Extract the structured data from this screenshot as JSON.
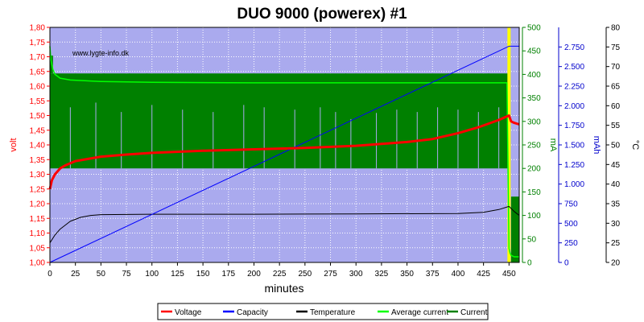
{
  "chart_data": {
    "type": "line",
    "title": "DUO 9000 (powerex) #1",
    "watermark": "www.lygte-info.dk",
    "xlabel": "minutes",
    "xlim": [
      0,
      460
    ],
    "x_ticks": [
      "0",
      "25",
      "50",
      "75",
      "100",
      "125",
      "150",
      "175",
      "200",
      "225",
      "250",
      "275",
      "300",
      "325",
      "350",
      "375",
      "400",
      "425",
      "450"
    ],
    "axes": {
      "volt": {
        "label": "volt",
        "color": "#ff0000",
        "range": [
          1.0,
          1.8
        ],
        "ticks": [
          "1,00",
          "1,05",
          "1,10",
          "1,15",
          "1,20",
          "1,25",
          "1,30",
          "1,35",
          "1,40",
          "1,45",
          "1,50",
          "1,55",
          "1,60",
          "1,65",
          "1,70",
          "1,75",
          "1,80"
        ]
      },
      "mA": {
        "label": "mA",
        "color": "#008000",
        "range": [
          0,
          500
        ],
        "ticks": [
          "0",
          "50",
          "100",
          "150",
          "200",
          "250",
          "300",
          "350",
          "400",
          "450",
          "500"
        ]
      },
      "mAh": {
        "label": "mAh",
        "color": "#0000cc",
        "range": [
          0,
          3000
        ],
        "ticks": [
          "0",
          "250",
          "500",
          "750",
          "1.000",
          "1.250",
          "1.500",
          "1.750",
          "2.000",
          "2.250",
          "2.500",
          "2.750"
        ]
      },
      "temp": {
        "label": "°C",
        "color": "#000000",
        "range": [
          20,
          80
        ],
        "ticks": [
          "20",
          "25",
          "30",
          "35",
          "40",
          "45",
          "50",
          "55",
          "60",
          "65",
          "70",
          "75",
          "80"
        ]
      }
    },
    "end_marker_x": 450,
    "series": [
      {
        "name": "Voltage",
        "color": "#ff0000",
        "axis": "volt",
        "x": [
          0,
          2,
          5,
          10,
          15,
          25,
          50,
          75,
          100,
          150,
          200,
          250,
          300,
          350,
          375,
          400,
          420,
          440,
          450,
          452,
          455,
          460
        ],
        "y": [
          1.25,
          1.28,
          1.3,
          1.32,
          1.33,
          1.345,
          1.36,
          1.367,
          1.373,
          1.38,
          1.385,
          1.39,
          1.397,
          1.41,
          1.42,
          1.44,
          1.46,
          1.485,
          1.5,
          1.48,
          1.475,
          1.47
        ]
      },
      {
        "name": "Capacity",
        "color": "#0000ff",
        "axis": "mAh",
        "x": [
          0,
          450,
          460
        ],
        "y": [
          0,
          2760,
          2760
        ]
      },
      {
        "name": "Temperature",
        "color": "#000000",
        "axis": "temp",
        "x": [
          0,
          5,
          10,
          20,
          30,
          40,
          50,
          100,
          200,
          300,
          400,
          425,
          440,
          450,
          455,
          460
        ],
        "y": [
          25,
          27,
          28.5,
          30.5,
          31.5,
          32,
          32.2,
          32.3,
          32.3,
          32.4,
          32.5,
          32.8,
          33.5,
          34.3,
          33,
          32
        ]
      },
      {
        "name": "Average current",
        "color": "#00ff00",
        "axis": "mA",
        "x": [
          0,
          1,
          3,
          5,
          10,
          20,
          50,
          100,
          200,
          300,
          400,
          448,
          450,
          451,
          452,
          455,
          460
        ],
        "y": [
          460,
          430,
          410,
          400,
          392,
          388,
          385,
          383,
          382,
          382,
          382,
          382,
          30,
          20,
          15,
          12,
          12
        ]
      },
      {
        "name": "Current",
        "color": "#008000",
        "axis": "mA",
        "band": {
          "x0": 0,
          "x1": 450,
          "low": 200,
          "high": 402
        },
        "spikes_above": [
          [
            25,
            255
          ],
          [
            40,
            250
          ],
          [
            53,
            270
          ],
          [
            78,
            245
          ],
          [
            95,
            262
          ],
          [
            120,
            238
          ],
          [
            140,
            252
          ],
          [
            175,
            260
          ],
          [
            200,
            248
          ],
          [
            225,
            255
          ],
          [
            250,
            275
          ],
          [
            270,
            262
          ],
          [
            290,
            258
          ],
          [
            300,
            270
          ],
          [
            310,
            250
          ],
          [
            330,
            245
          ],
          [
            350,
            262
          ],
          [
            375,
            258
          ],
          [
            390,
            255
          ],
          [
            410,
            245
          ],
          [
            430,
            268
          ]
        ],
        "spikes_below": [
          [
            20,
            330
          ],
          [
            45,
            340
          ],
          [
            70,
            320
          ],
          [
            100,
            335
          ],
          [
            130,
            325
          ],
          [
            160,
            320
          ],
          [
            190,
            335
          ],
          [
            210,
            330
          ],
          [
            240,
            325
          ],
          [
            265,
            330
          ],
          [
            280,
            320
          ],
          [
            295,
            305
          ],
          [
            320,
            318
          ],
          [
            340,
            325
          ],
          [
            360,
            320
          ],
          [
            380,
            330
          ],
          [
            400,
            325
          ],
          [
            420,
            320
          ],
          [
            440,
            330
          ]
        ],
        "tail": {
          "x0": 452,
          "x1": 460,
          "low": 0,
          "high": 140
        }
      }
    ],
    "legend": [
      "Voltage",
      "Capacity",
      "Temperature",
      "Average current",
      "Current"
    ],
    "legend_position": "bottom"
  }
}
